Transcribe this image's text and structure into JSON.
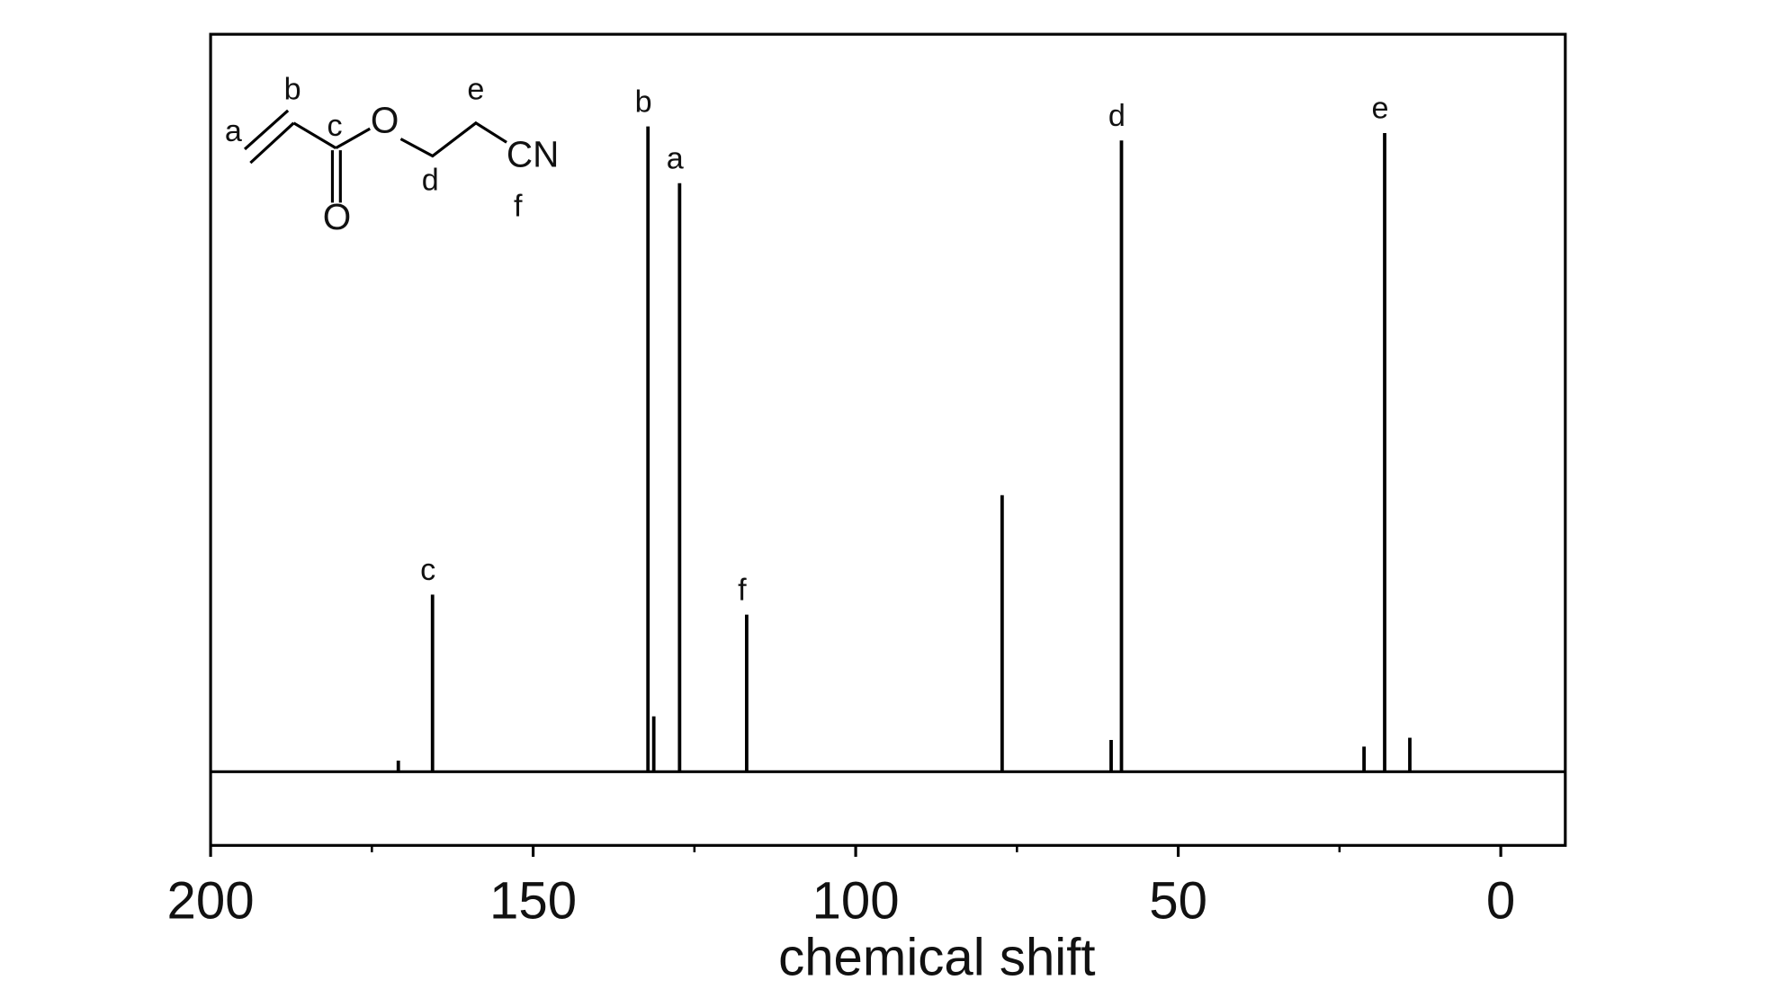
{
  "chart_data": {
    "type": "spectrum",
    "x_label": "chemical shift",
    "xlim": [
      200,
      -10
    ],
    "xticks": [
      200,
      150,
      100,
      50,
      0
    ],
    "ylim": [
      -10,
      100
    ],
    "x": [
      170.9,
      165.6,
      132.2,
      131.3,
      127.3,
      116.9,
      77.3,
      60.4,
      58.8,
      21.2,
      18.0,
      14.1
    ],
    "values": [
      1.5,
      24,
      87.5,
      7.5,
      79.8,
      21.3,
      37.5,
      4.3,
      85.6,
      3.4,
      86.6,
      4.6
    ],
    "peak_labels": [
      null,
      "c",
      "b",
      null,
      "a",
      "f",
      null,
      null,
      "d",
      null,
      "e",
      null
    ],
    "color": "#000000",
    "inset": {
      "labels": [
        "a",
        "b",
        "c",
        "O",
        "d",
        "e",
        "CN",
        "f",
        "O"
      ]
    }
  }
}
